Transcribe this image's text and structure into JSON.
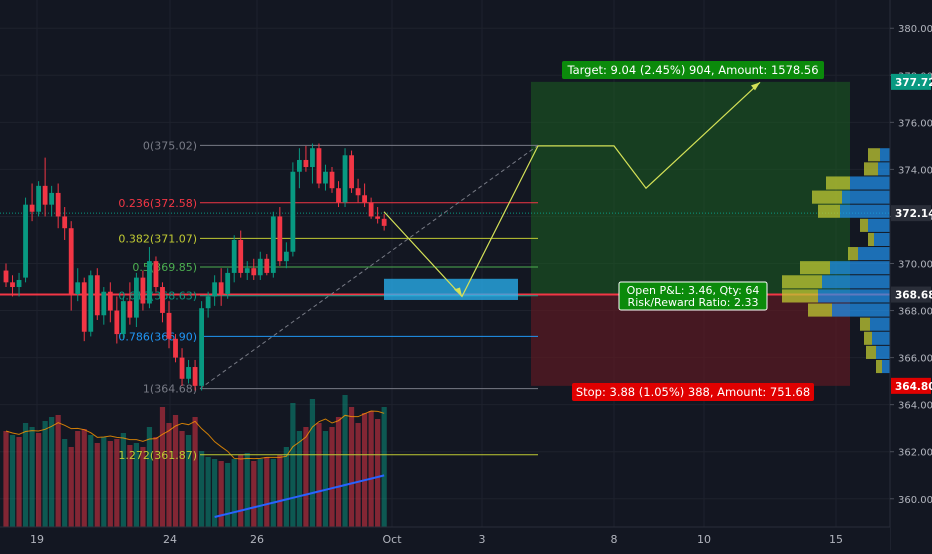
{
  "chart_data": {
    "type": "candlestick",
    "symbol_price_last": "372.14",
    "x_axis": {
      "ticks": [
        "19",
        "24",
        "26",
        "Oct",
        "3",
        "8",
        "10",
        "15"
      ]
    },
    "y_axis": {
      "ticks": [
        "380.00",
        "378.00",
        "376.00",
        "374.00",
        "372.00",
        "370.00",
        "368.00",
        "366.00",
        "364.00",
        "362.00",
        "360.00"
      ],
      "range": [
        358.8,
        381.2
      ]
    },
    "price_labels": [
      {
        "value": 377.72,
        "text": "377.72",
        "color": "#089981"
      },
      {
        "value": 372.14,
        "text": "372.14",
        "color": "#2a2e39"
      },
      {
        "value": 368.68,
        "text": "368.68",
        "color": "#2a2e39"
      },
      {
        "value": 364.8,
        "text": "364.80",
        "color": "#e00000"
      }
    ],
    "fibonacci": [
      {
        "label": "0(375.02)",
        "value": 375.02,
        "color": "#787b86"
      },
      {
        "label": "0.236(372.58)",
        "value": 372.58,
        "color": "#f23645"
      },
      {
        "label": "0.382(371.07)",
        "value": 371.07,
        "color": "#c0ca33"
      },
      {
        "label": "0.5(369.85)",
        "value": 369.85,
        "color": "#4caf50"
      },
      {
        "label": "0.618(368.63)",
        "value": 368.63,
        "color": "#089981"
      },
      {
        "label": "0.786(366.90)",
        "value": 366.9,
        "color": "#2196f3"
      },
      {
        "label": "1(364.68)",
        "value": 364.68,
        "color": "#787b86"
      },
      {
        "label": "1.272(361.87)",
        "value": 361.87,
        "color": "#c0ca33"
      }
    ],
    "position": {
      "entry": 368.68,
      "target": 377.72,
      "stop": 364.8,
      "target_label": "Target: 9.04 (2.45%) 904, Amount: 1578.56",
      "stop_label": "Stop: 3.88 (1.05%) 388, Amount: 751.68",
      "pnl_label": "Open P&L: 3.46, Qty: 64",
      "rr_label": "Risk/Reward Ratio: 2.33"
    },
    "candles": [
      {
        "o": 369.7,
        "h": 370.0,
        "l": 369.0,
        "c": 369.2
      },
      {
        "o": 369.2,
        "h": 369.5,
        "l": 368.6,
        "c": 369.0
      },
      {
        "o": 369.0,
        "h": 369.6,
        "l": 368.6,
        "c": 369.3
      },
      {
        "o": 369.4,
        "h": 372.8,
        "l": 369.2,
        "c": 372.5
      },
      {
        "o": 372.5,
        "h": 373.4,
        "l": 371.8,
        "c": 372.2
      },
      {
        "o": 372.2,
        "h": 373.5,
        "l": 372.0,
        "c": 373.3
      },
      {
        "o": 373.3,
        "h": 374.5,
        "l": 372.0,
        "c": 372.5
      },
      {
        "o": 372.5,
        "h": 373.3,
        "l": 372.0,
        "c": 373.0
      },
      {
        "o": 373.0,
        "h": 373.4,
        "l": 371.5,
        "c": 372.0
      },
      {
        "o": 372.0,
        "h": 372.4,
        "l": 371.0,
        "c": 371.5
      },
      {
        "o": 371.5,
        "h": 371.8,
        "l": 368.0,
        "c": 368.7
      },
      {
        "o": 368.7,
        "h": 369.8,
        "l": 368.4,
        "c": 369.2
      },
      {
        "o": 369.2,
        "h": 369.4,
        "l": 366.7,
        "c": 367.1
      },
      {
        "o": 367.1,
        "h": 369.7,
        "l": 366.9,
        "c": 369.5
      },
      {
        "o": 369.5,
        "h": 369.8,
        "l": 367.6,
        "c": 367.8
      },
      {
        "o": 367.8,
        "h": 369.0,
        "l": 367.4,
        "c": 368.8
      },
      {
        "o": 368.8,
        "h": 369.2,
        "l": 367.5,
        "c": 368.0
      },
      {
        "o": 368.0,
        "h": 368.6,
        "l": 366.6,
        "c": 367.0
      },
      {
        "o": 367.0,
        "h": 368.6,
        "l": 366.8,
        "c": 368.4
      },
      {
        "o": 368.4,
        "h": 369.2,
        "l": 367.4,
        "c": 367.7
      },
      {
        "o": 367.7,
        "h": 369.6,
        "l": 367.3,
        "c": 369.4
      },
      {
        "o": 369.4,
        "h": 369.7,
        "l": 368.0,
        "c": 368.3
      },
      {
        "o": 368.3,
        "h": 370.7,
        "l": 368.1,
        "c": 370.1
      },
      {
        "o": 370.1,
        "h": 370.3,
        "l": 368.8,
        "c": 369.0
      },
      {
        "o": 369.0,
        "h": 369.2,
        "l": 367.5,
        "c": 367.9
      },
      {
        "o": 367.9,
        "h": 368.4,
        "l": 366.4,
        "c": 366.8
      },
      {
        "o": 366.8,
        "h": 367.0,
        "l": 365.8,
        "c": 366.0
      },
      {
        "o": 366.0,
        "h": 366.4,
        "l": 364.8,
        "c": 365.1
      },
      {
        "o": 365.1,
        "h": 365.9,
        "l": 364.9,
        "c": 365.6
      },
      {
        "o": 365.6,
        "h": 365.9,
        "l": 364.6,
        "c": 364.8
      },
      {
        "o": 364.8,
        "h": 368.4,
        "l": 364.6,
        "c": 368.1
      },
      {
        "o": 368.1,
        "h": 368.8,
        "l": 367.7,
        "c": 368.6
      },
      {
        "o": 368.6,
        "h": 369.5,
        "l": 368.2,
        "c": 369.2
      },
      {
        "o": 369.2,
        "h": 369.8,
        "l": 368.2,
        "c": 368.7
      },
      {
        "o": 368.7,
        "h": 369.8,
        "l": 368.5,
        "c": 369.6
      },
      {
        "o": 369.6,
        "h": 371.2,
        "l": 369.2,
        "c": 371.0
      },
      {
        "o": 371.0,
        "h": 371.4,
        "l": 369.4,
        "c": 369.6
      },
      {
        "o": 369.6,
        "h": 370.1,
        "l": 369.3,
        "c": 369.8
      },
      {
        "o": 369.8,
        "h": 370.2,
        "l": 369.3,
        "c": 369.5
      },
      {
        "o": 369.5,
        "h": 370.5,
        "l": 369.3,
        "c": 370.2
      },
      {
        "o": 370.2,
        "h": 370.4,
        "l": 369.5,
        "c": 369.6
      },
      {
        "o": 369.6,
        "h": 372.2,
        "l": 369.4,
        "c": 372.0
      },
      {
        "o": 372.0,
        "h": 372.4,
        "l": 369.9,
        "c": 370.1
      },
      {
        "o": 370.1,
        "h": 370.9,
        "l": 369.8,
        "c": 370.5
      },
      {
        "o": 370.5,
        "h": 374.3,
        "l": 370.3,
        "c": 373.9
      },
      {
        "o": 373.9,
        "h": 374.9,
        "l": 373.2,
        "c": 374.4
      },
      {
        "o": 374.4,
        "h": 375.0,
        "l": 373.9,
        "c": 374.1
      },
      {
        "o": 374.1,
        "h": 375.1,
        "l": 373.4,
        "c": 374.9
      },
      {
        "o": 374.9,
        "h": 375.1,
        "l": 373.2,
        "c": 373.4
      },
      {
        "o": 373.4,
        "h": 374.2,
        "l": 373.1,
        "c": 373.9
      },
      {
        "o": 373.9,
        "h": 374.1,
        "l": 373.0,
        "c": 373.2
      },
      {
        "o": 373.2,
        "h": 373.5,
        "l": 372.4,
        "c": 372.6
      },
      {
        "o": 372.6,
        "h": 374.9,
        "l": 372.4,
        "c": 374.6
      },
      {
        "o": 374.6,
        "h": 374.8,
        "l": 373.0,
        "c": 373.2
      },
      {
        "o": 373.2,
        "h": 373.6,
        "l": 372.6,
        "c": 372.9
      },
      {
        "o": 372.9,
        "h": 373.4,
        "l": 372.4,
        "c": 372.6
      },
      {
        "o": 372.6,
        "h": 372.8,
        "l": 371.9,
        "c": 372.0
      },
      {
        "o": 372.0,
        "h": 372.4,
        "l": 371.7,
        "c": 371.9
      },
      {
        "o": 371.9,
        "h": 372.1,
        "l": 371.4,
        "c": 371.6
      }
    ],
    "volume": [
      48,
      46,
      45,
      52,
      50,
      47,
      53,
      55,
      56,
      44,
      40,
      48,
      49,
      46,
      42,
      45,
      43,
      44,
      47,
      41,
      42,
      40,
      50,
      45,
      60,
      52,
      56,
      48,
      46,
      55,
      38,
      35,
      34,
      33,
      32,
      34,
      36,
      37,
      33,
      34,
      35,
      34,
      36,
      40,
      62,
      48,
      50,
      64,
      52,
      48,
      50,
      55,
      66,
      60,
      52,
      57,
      58,
      54,
      60
    ],
    "volume_colors": [
      "#f23645",
      "#089981",
      "#f23645",
      "#089981",
      "#089981",
      "#f23645",
      "#089981",
      "#089981",
      "#f23645",
      "#089981",
      "#f23645",
      "#f23645",
      "#f23645",
      "#089981",
      "#f23645",
      "#089981",
      "#f23645",
      "#f23645",
      "#089981",
      "#f23645",
      "#089981",
      "#f23645",
      "#089981",
      "#f23645",
      "#f23645",
      "#f23645",
      "#f23645",
      "#f23645",
      "#089981",
      "#f23645",
      "#089981",
      "#089981",
      "#089981",
      "#f23645",
      "#089981",
      "#089981",
      "#f23645",
      "#089981",
      "#f23645",
      "#089981",
      "#f23645",
      "#089981",
      "#f23645",
      "#089981",
      "#089981",
      "#089981",
      "#f23645",
      "#089981",
      "#f23645",
      "#089981",
      "#f23645",
      "#f23645",
      "#089981",
      "#f23645",
      "#f23645",
      "#f23645",
      "#f23645",
      "#f23645",
      "#089981"
    ],
    "volume_profile": [
      {
        "price": 374.6,
        "up": 12,
        "down": 10
      },
      {
        "price": 374.0,
        "up": 14,
        "down": 12
      },
      {
        "price": 373.4,
        "up": 24,
        "down": 40
      },
      {
        "price": 372.8,
        "up": 30,
        "down": 48
      },
      {
        "price": 372.2,
        "up": 22,
        "down": 50
      },
      {
        "price": 371.6,
        "up": 8,
        "down": 22
      },
      {
        "price": 371.0,
        "up": 6,
        "down": 16
      },
      {
        "price": 370.4,
        "up": 10,
        "down": 32
      },
      {
        "price": 369.8,
        "up": 30,
        "down": 60
      },
      {
        "price": 369.2,
        "up": 40,
        "down": 68
      },
      {
        "price": 368.6,
        "up": 36,
        "down": 72
      },
      {
        "price": 368.0,
        "up": 24,
        "down": 58
      },
      {
        "price": 367.4,
        "up": 10,
        "down": 20
      },
      {
        "price": 366.8,
        "up": 8,
        "down": 18
      },
      {
        "price": 366.2,
        "up": 10,
        "down": 14
      },
      {
        "price": 365.6,
        "up": 6,
        "down": 8
      }
    ],
    "colors": {
      "up": "#089981",
      "down": "#f23645",
      "grid": "#1e222d",
      "axis_text": "#b2b5be",
      "profit_zone": "#1b5e20",
      "loss_zone": "#5d1a22",
      "projection": "#d4e157"
    }
  }
}
